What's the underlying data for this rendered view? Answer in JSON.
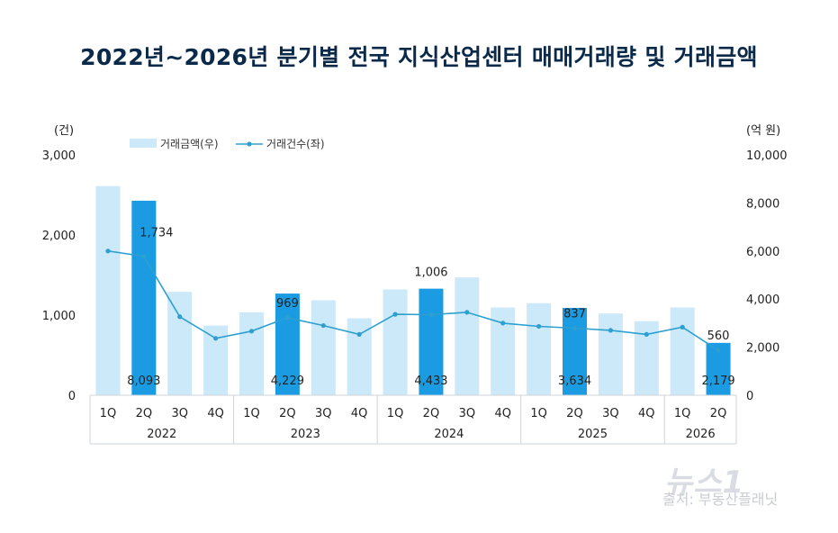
{
  "title": "2022년~2026년 분기별 전국 지식산업센터 매매거래량 및 거래금액",
  "source": "출처: 부동산플래닛",
  "watermark": "뉴스1",
  "chart_data": {
    "type": "bar",
    "categories": [
      "1Q",
      "2Q",
      "3Q",
      "4Q",
      "1Q",
      "2Q",
      "3Q",
      "4Q",
      "1Q",
      "2Q",
      "3Q",
      "4Q",
      "1Q",
      "2Q",
      "3Q",
      "4Q",
      "1Q",
      "2Q"
    ],
    "years": [
      {
        "label": "2022",
        "count": 4
      },
      {
        "label": "2023",
        "count": 4
      },
      {
        "label": "2024",
        "count": 4
      },
      {
        "label": "2025",
        "count": 4
      },
      {
        "label": "2026",
        "count": 2
      }
    ],
    "left_unit": "(건)",
    "right_unit": "(억 원)",
    "left_ticks": [
      "3,000",
      "2,000",
      "1,000",
      "0"
    ],
    "right_ticks": [
      "10,000",
      "8,000",
      "6,000",
      "4,000",
      "2,000",
      "0"
    ],
    "ylim_left": [
      0,
      3000
    ],
    "ylim_right": [
      0,
      10000
    ],
    "series": [
      {
        "name": "거래금액(우)",
        "type": "bar",
        "axis": "right",
        "values": [
          8700,
          8093,
          4300,
          2900,
          3450,
          4229,
          3950,
          3200,
          4400,
          4433,
          4900,
          3650,
          3830,
          3634,
          3400,
          3080,
          3650,
          2179
        ]
      },
      {
        "name": "거래건수(좌)",
        "type": "line",
        "axis": "left",
        "values": [
          1800,
          1734,
          980,
          710,
          800,
          969,
          870,
          760,
          1010,
          1006,
          1035,
          900,
          860,
          837,
          810,
          760,
          850,
          560
        ]
      }
    ],
    "highlight_indices": [
      1,
      5,
      9,
      13,
      17
    ],
    "bar_labels": {
      "1": "8,093",
      "5": "4,229",
      "9": "4,433",
      "13": "3,634",
      "17": "2,179"
    },
    "line_labels": {
      "1": "1,734",
      "5": "969",
      "9": "1,006",
      "13": "837",
      "17": "560"
    },
    "colors": {
      "bar_light": "#cbe9f8",
      "bar_highlight": "#1a9be2",
      "line": "#2d9fd0",
      "title": "#0b2a4a"
    }
  }
}
